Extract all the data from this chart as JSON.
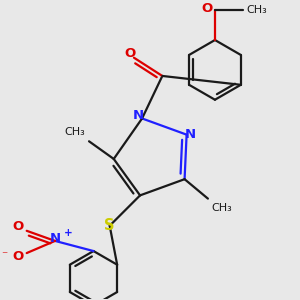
{
  "bg_color": "#e8e8e8",
  "bond_color": "#1a1a1a",
  "bond_width": 1.6,
  "N_color": "#2020ff",
  "O_color": "#dd0000",
  "S_color": "#cccc00",
  "font_size": 8.5,
  "fig_size": [
    3.0,
    3.0
  ],
  "dpi": 100,
  "xlim": [
    0.1,
    3.0
  ],
  "ylim": [
    0.1,
    3.0
  ]
}
